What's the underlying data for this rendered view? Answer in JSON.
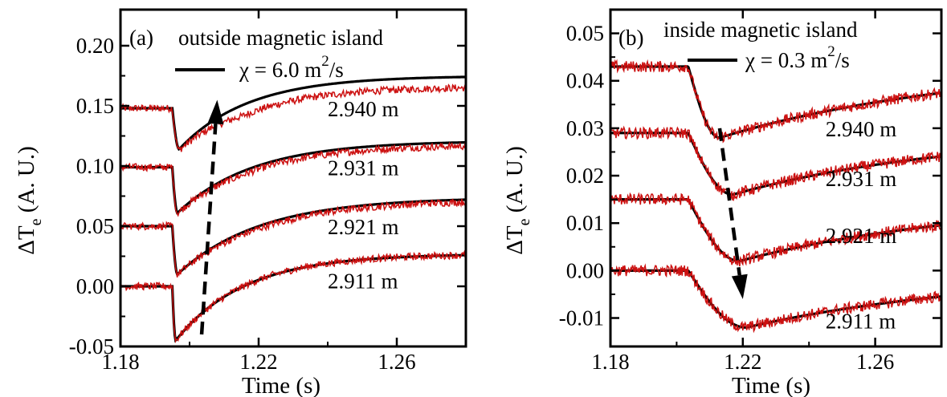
{
  "colors": {
    "model": "#000000",
    "measured": "#cc1111",
    "axis": "#000000"
  },
  "chart_data": [
    {
      "type": "line",
      "panel_label": "(a)",
      "title": "outside magnetic island",
      "legend_text": "χ = 6.0 m²/s",
      "legend_value": "6.0",
      "xlabel": "Time (s)",
      "ylabel": "ΔTe (A. U.)",
      "xlim": [
        1.18,
        1.28
      ],
      "ylim": [
        -0.05,
        0.23
      ],
      "xticks": [
        1.18,
        1.22,
        1.26
      ],
      "xtick_labels": [
        "1.18",
        "1.22",
        "1.26"
      ],
      "yticks": [
        -0.05,
        0.0,
        0.05,
        0.1,
        0.15,
        0.2
      ],
      "ytick_labels": [
        "-0.05",
        "0.00",
        "0.05",
        "0.10",
        "0.15",
        "0.20"
      ],
      "t0": 1.195,
      "noise_amp": 0.003,
      "arrow": {
        "from": [
          1.2035,
          -0.04
        ],
        "to": [
          1.208,
          0.155
        ]
      },
      "series": [
        {
          "name": "2.940 m",
          "label_at": [
            1.24,
            0.148
          ],
          "baseline": 0.148,
          "min": 0.114,
          "t_min": 1.197,
          "final": 0.175,
          "tau": 0.02,
          "meas_offset": -0.009
        },
        {
          "name": "2.931 m",
          "label_at": [
            1.24,
            0.099
          ],
          "baseline": 0.099,
          "min": 0.061,
          "t_min": 1.1965,
          "final": 0.121,
          "tau": 0.022,
          "meas_offset": -0.003
        },
        {
          "name": "2.921 m",
          "label_at": [
            1.24,
            0.05
          ],
          "baseline": 0.05,
          "min": 0.01,
          "t_min": 1.1965,
          "final": 0.074,
          "tau": 0.024,
          "meas_offset": -0.002
        },
        {
          "name": "2.911 m",
          "label_at": [
            1.24,
            0.005
          ],
          "baseline": 0.0,
          "min": -0.045,
          "t_min": 1.196,
          "final": 0.027,
          "tau": 0.02,
          "meas_offset": 0.0
        }
      ]
    },
    {
      "type": "line",
      "panel_label": "(b)",
      "title": "inside magnetic island",
      "legend_text": "χ = 0.3 m²/s",
      "legend_value": "0.3",
      "xlabel": "Time (s)",
      "ylabel": "ΔTe (A. U.)",
      "xlim": [
        1.18,
        1.28
      ],
      "ylim": [
        -0.016,
        0.055
      ],
      "xticks": [
        1.18,
        1.22,
        1.26
      ],
      "xtick_labels": [
        "1.18",
        "1.22",
        "1.26"
      ],
      "yticks": [
        -0.01,
        0.0,
        0.01,
        0.02,
        0.03,
        0.04,
        0.05
      ],
      "ytick_labels": [
        "-0.01",
        "0.00",
        "0.01",
        "0.02",
        "0.03",
        "0.04",
        "0.05"
      ],
      "t0": 1.2035,
      "noise_amp": 0.0012,
      "arrow": {
        "from": [
          1.213,
          0.03
        ],
        "to": [
          1.22,
          -0.006
        ]
      },
      "series": [
        {
          "name": "2.940 m",
          "label_at": [
            1.245,
            0.03
          ],
          "baseline": 0.043,
          "min": 0.028,
          "t_min": 1.213,
          "final": 0.044,
          "tau": 0.075,
          "meas_offset": 0.0
        },
        {
          "name": "2.931 m",
          "label_at": [
            1.245,
            0.0195
          ],
          "baseline": 0.029,
          "min": 0.016,
          "t_min": 1.217,
          "final": 0.029,
          "tau": 0.065,
          "meas_offset": 0.0
        },
        {
          "name": "2.921 m",
          "label_at": [
            1.245,
            0.0075
          ],
          "baseline": 0.015,
          "min": 0.002,
          "t_min": 1.219,
          "final": 0.015,
          "tau": 0.07,
          "meas_offset": 0.0
        },
        {
          "name": "2.911 m",
          "label_at": [
            1.245,
            -0.0105
          ],
          "baseline": 0.0,
          "min": -0.012,
          "t_min": 1.221,
          "final": 0.0,
          "tau": 0.075,
          "meas_offset": 0.0
        }
      ]
    }
  ]
}
